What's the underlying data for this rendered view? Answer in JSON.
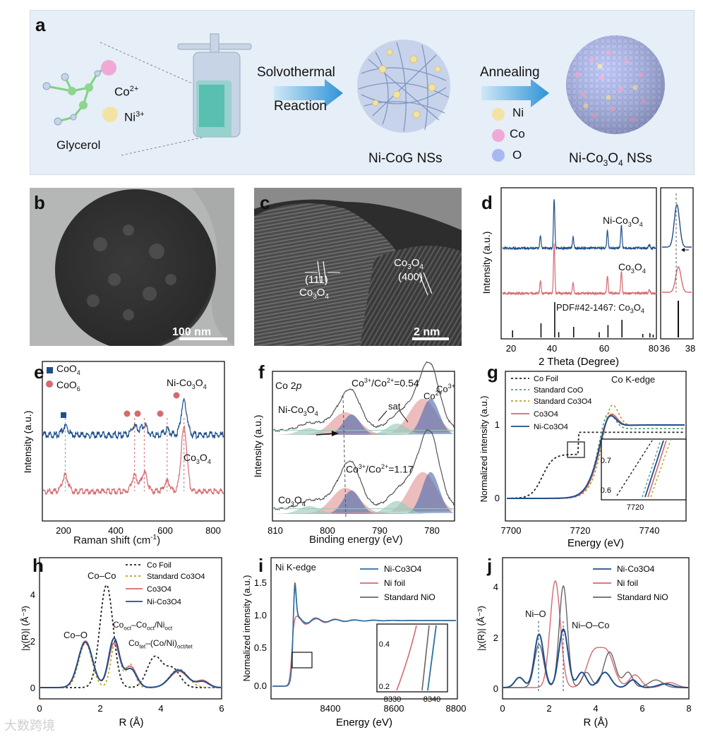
{
  "panels": {
    "a": {
      "label": "a",
      "glycerol": "Glycerol",
      "co_ion": "Co",
      "co_ion_charge": "2+",
      "ni_ion": "Ni",
      "ni_ion_charge": "3+",
      "step1_line1": "Solvothermal",
      "step1_line2": "Reaction",
      "intermediate": "Ni-CoG NSs",
      "step2": "Annealing",
      "legend": [
        "Ni",
        "Co",
        "O"
      ],
      "product_prefix": "Ni-Co",
      "product_sub1": "3",
      "product_mid": "O",
      "product_sub2": "4",
      "product_suffix": " NSs",
      "colors": {
        "ni": "#f2e3a2",
        "co": "#f0a9d6",
        "o": "#a9b7f2",
        "arrow": "#3ea0dd"
      }
    },
    "b": {
      "label": "b",
      "scale": "100 nm"
    },
    "c": {
      "label": "c",
      "plane1": "(111)",
      "material1": "Co",
      "material1_sub": "3",
      "material1_o": "O",
      "material1_sub2": "4",
      "plane2": "(400)",
      "material2": "Co",
      "material2_sub": "3",
      "material2_o": "O",
      "material2_sub2": "4",
      "scale": "2 nm"
    },
    "d": {
      "label": "d",
      "ylabel": "Intensity (a.u.)",
      "xlabel": "2 Theta (Degree)",
      "s1": "Ni-Co",
      "s1_sub": "3",
      "s1_o": "O",
      "s1_sub2": "4",
      "s2": "Co",
      "s2_sub": "3",
      "s2_o": "O",
      "s2_sub2": "4",
      "ref": "PDF#42-1467: Co",
      "ref_sub": "3",
      "ref_o": "O",
      "ref_sub2": "4",
      "xticks": [
        "20",
        "40",
        "60",
        "80"
      ],
      "inset_xticks": [
        "36",
        "38"
      ]
    },
    "e": {
      "label": "e",
      "ylabel": "Intensity (a.u.)",
      "xlabel": "Raman shift (cm",
      "xlabel_sup": "-1",
      "xlabel_end": ")",
      "leg1": "CoO",
      "leg1_sub": "4",
      "leg2": "CoO",
      "leg2_sub": "6",
      "s1": "Ni-Co",
      "s1_sub": "3",
      "s1_o": "O",
      "s1_sub2": "4",
      "s2": "Co",
      "s2_sub": "3",
      "s2_o": "O",
      "s2_sub2": "4",
      "xticks": [
        "200",
        "400",
        "600",
        "800"
      ]
    },
    "f": {
      "label": "f",
      "title": "Co 2",
      "title_it": "p",
      "ylabel": "Intensity (a.u.)",
      "xlabel": "Binding energy (eV)",
      "ratio1": "Co",
      "ratio1_sup": "3+",
      "ratio1_mid": "/Co",
      "ratio1_sup2": "2+",
      "ratio1_val": "=0.54",
      "ratio2_val": "=1.17",
      "co2": "Co",
      "co2_sup": "2+",
      "co3": "Co",
      "co3_sup": "3+",
      "sat": "sat",
      "s1": "Ni-Co",
      "s1_sub": "3",
      "s1_o": "O",
      "s1_sub2": "4",
      "s2": "Co",
      "s2_sub": "3",
      "s2_o": "O",
      "s2_sub2": "4",
      "xticks": [
        "810",
        "800",
        "790",
        "780"
      ]
    },
    "g": {
      "label": "g",
      "title": "Co K-edge",
      "ylabel": "Normalized intensity (a.u.)",
      "xlabel": "Energy (eV)",
      "legend": [
        "Co Foil",
        "Standard CoO",
        "Standard Co3O4",
        "Co3O4",
        "Ni-Co3O4"
      ],
      "xticks": [
        "7700",
        "7720",
        "7740"
      ],
      "yticks": [
        "0",
        "1"
      ],
      "inset_yticks": [
        "0.7",
        "0.6"
      ],
      "inset_xtick": "7720"
    },
    "h": {
      "label": "h",
      "ylabel": "|χ(R)| (Å⁻³)",
      "xlabel": "R (Å)",
      "legend": [
        "Co Foil",
        "Standard Co3O4",
        "Co3O4",
        "Ni-Co3O4"
      ],
      "ann1": "Co–Co",
      "ann2": "Co–O",
      "ann3": "Co",
      "ann3_sub": "oct",
      "ann3_mid": "–Co",
      "ann3_sub2": "oct",
      "ann3_end": "/Ni",
      "ann3_sub3": "oct",
      "ann4": "Co",
      "ann4_sub": "tet",
      "ann4_mid": "–(Co/Ni)",
      "ann4_sub2": "oct/tet",
      "xticks": [
        "0",
        "2",
        "4",
        "6"
      ],
      "yticks": [
        "0",
        "2",
        "4"
      ]
    },
    "i": {
      "label": "i",
      "title": "Ni K-edge",
      "ylabel": "Normalized intensity (a.u.)",
      "xlabel": "Energy (eV)",
      "legend": [
        "Ni-Co3O4",
        "Ni foil",
        "Standard NiO"
      ],
      "xticks": [
        "8400",
        "8600",
        "8800"
      ],
      "yticks": [
        "0.0",
        "0.5",
        "1.0",
        "1.5"
      ],
      "inset_xticks": [
        "8330",
        "8340"
      ],
      "inset_yticks": [
        "0.4",
        "0.2"
      ]
    },
    "j": {
      "label": "j",
      "ylabel": "|χ(R)| (Å⁻³)",
      "xlabel": "R (Å)",
      "legend": [
        "Ni-Co3O4",
        "Ni foil",
        "Standard NiO"
      ],
      "ann1": "Ni–O",
      "ann2": "Ni–O–Co",
      "xticks": [
        "0",
        "2",
        "4",
        "6",
        "8"
      ],
      "yticks": [
        "0",
        "2",
        "4"
      ]
    }
  },
  "watermark": "大数跨境",
  "colors": {
    "blue": "#1f4e8c",
    "red": "#d56a6f",
    "gray": "#666666",
    "olive": "#b5a023",
    "teal": "#4a9c7a"
  }
}
